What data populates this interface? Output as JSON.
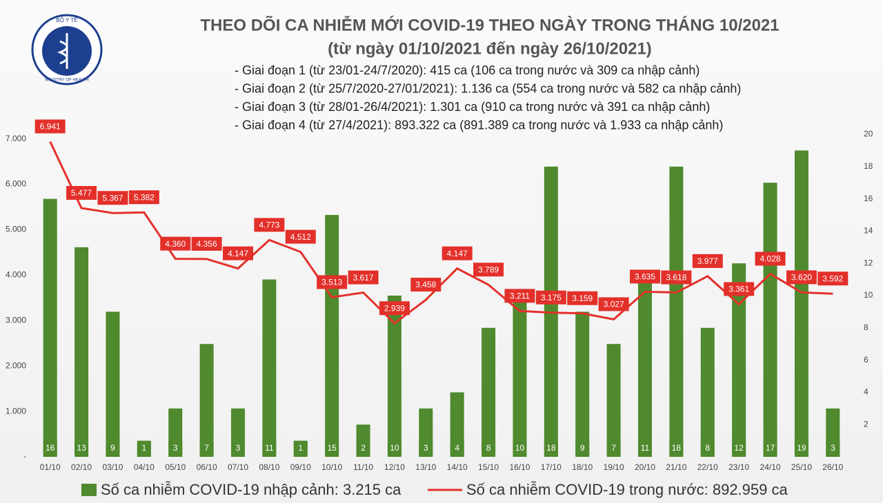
{
  "logo": {
    "top": "BỘ Y TẾ",
    "bottom": "MINISTRY OF HEALTH"
  },
  "chart_data": {
    "type": "bar-line",
    "title": "THEO DÕI CA NHIỄM MỚI COVID-19 THEO NGÀY TRONG THÁNG 10/2021",
    "subtitle": "(từ ngày 01/10/2021 đến ngày 26/10/2021)",
    "notes": [
      "- Giai đoạn 1 (từ 23/01-24/7/2020): 415 ca (106 ca trong nước và 309 ca nhập cảnh)",
      "- Giai đoạn 2 (từ 25/7/2020-27/01/2021): 1.136 ca (554 ca trong nước và 582 ca nhập cảnh)",
      "- Giai đoạn 3 (từ 28/01-26/4/2021): 1.301 ca (910 ca trong nước và 391 ca nhập cảnh)",
      "- Giai đoạn 4 (từ 27/4/2021): 893.322 ca (891.389 ca trong nước và 1.933 ca nhập cảnh)"
    ],
    "categories": [
      "01/10",
      "02/10",
      "03/10",
      "04/10",
      "05/10",
      "06/10",
      "07/10",
      "08/10",
      "09/10",
      "10/10",
      "11/10",
      "12/10",
      "13/10",
      "14/10",
      "15/10",
      "16/10",
      "17/10",
      "18/10",
      "19/10",
      "20/10",
      "21/10",
      "22/10",
      "23/10",
      "24/10",
      "25/10",
      "26/10"
    ],
    "series": [
      {
        "name": "Số ca nhiễm COVID-19 nhập cảnh: 3.215 ca",
        "color": "#4f8a2e",
        "axis": "y2",
        "kind": "bar",
        "values": [
          16,
          13,
          9,
          1,
          3,
          7,
          3,
          11,
          1,
          15,
          2,
          10,
          3,
          4,
          8,
          10,
          18,
          9,
          7,
          11,
          18,
          8,
          12,
          17,
          19,
          3
        ]
      },
      {
        "name": "Số ca nhiễm COVID-19 trong nước: 892.959 ca",
        "color": "#e3302a",
        "kind": "line",
        "values": [
          6941,
          5477,
          5367,
          5382,
          4360,
          4356,
          4147,
          4773,
          4512,
          3513,
          3617,
          2939,
          3458,
          4147,
          3789,
          3211,
          3175,
          3159,
          3027,
          3635,
          3618,
          3977,
          3361,
          4028,
          3620,
          3592
        ],
        "value_labels": [
          "6.941",
          "5.477",
          "5.367",
          "5.382",
          "4.360",
          "4.356",
          "4.147",
          "4.773",
          "4.512",
          "3.513",
          "3.617",
          "2.939",
          "3.458",
          "4.147",
          "3.789",
          "3.211",
          "3.175",
          "3.159",
          "3.027",
          "3.635",
          "3.618",
          "3.977",
          "3.361",
          "4.028",
          "3.620",
          "3.592"
        ]
      }
    ],
    "ylim": [
      0,
      7100
    ],
    "yticks": [
      {
        "value": 0,
        "label": "-"
      },
      {
        "value": 1000,
        "label": "1.000"
      },
      {
        "value": 2000,
        "label": "2.000"
      },
      {
        "value": 3000,
        "label": "3.000"
      },
      {
        "value": 4000,
        "label": "4.000"
      },
      {
        "value": 5000,
        "label": "5.000"
      },
      {
        "value": 6000,
        "label": "6.000"
      },
      {
        "value": 7000,
        "label": "7.000"
      }
    ],
    "y2lim": [
      0,
      20
    ],
    "y2ticks": [
      2,
      4,
      6,
      8,
      10,
      12,
      14,
      16,
      18,
      20
    ]
  }
}
